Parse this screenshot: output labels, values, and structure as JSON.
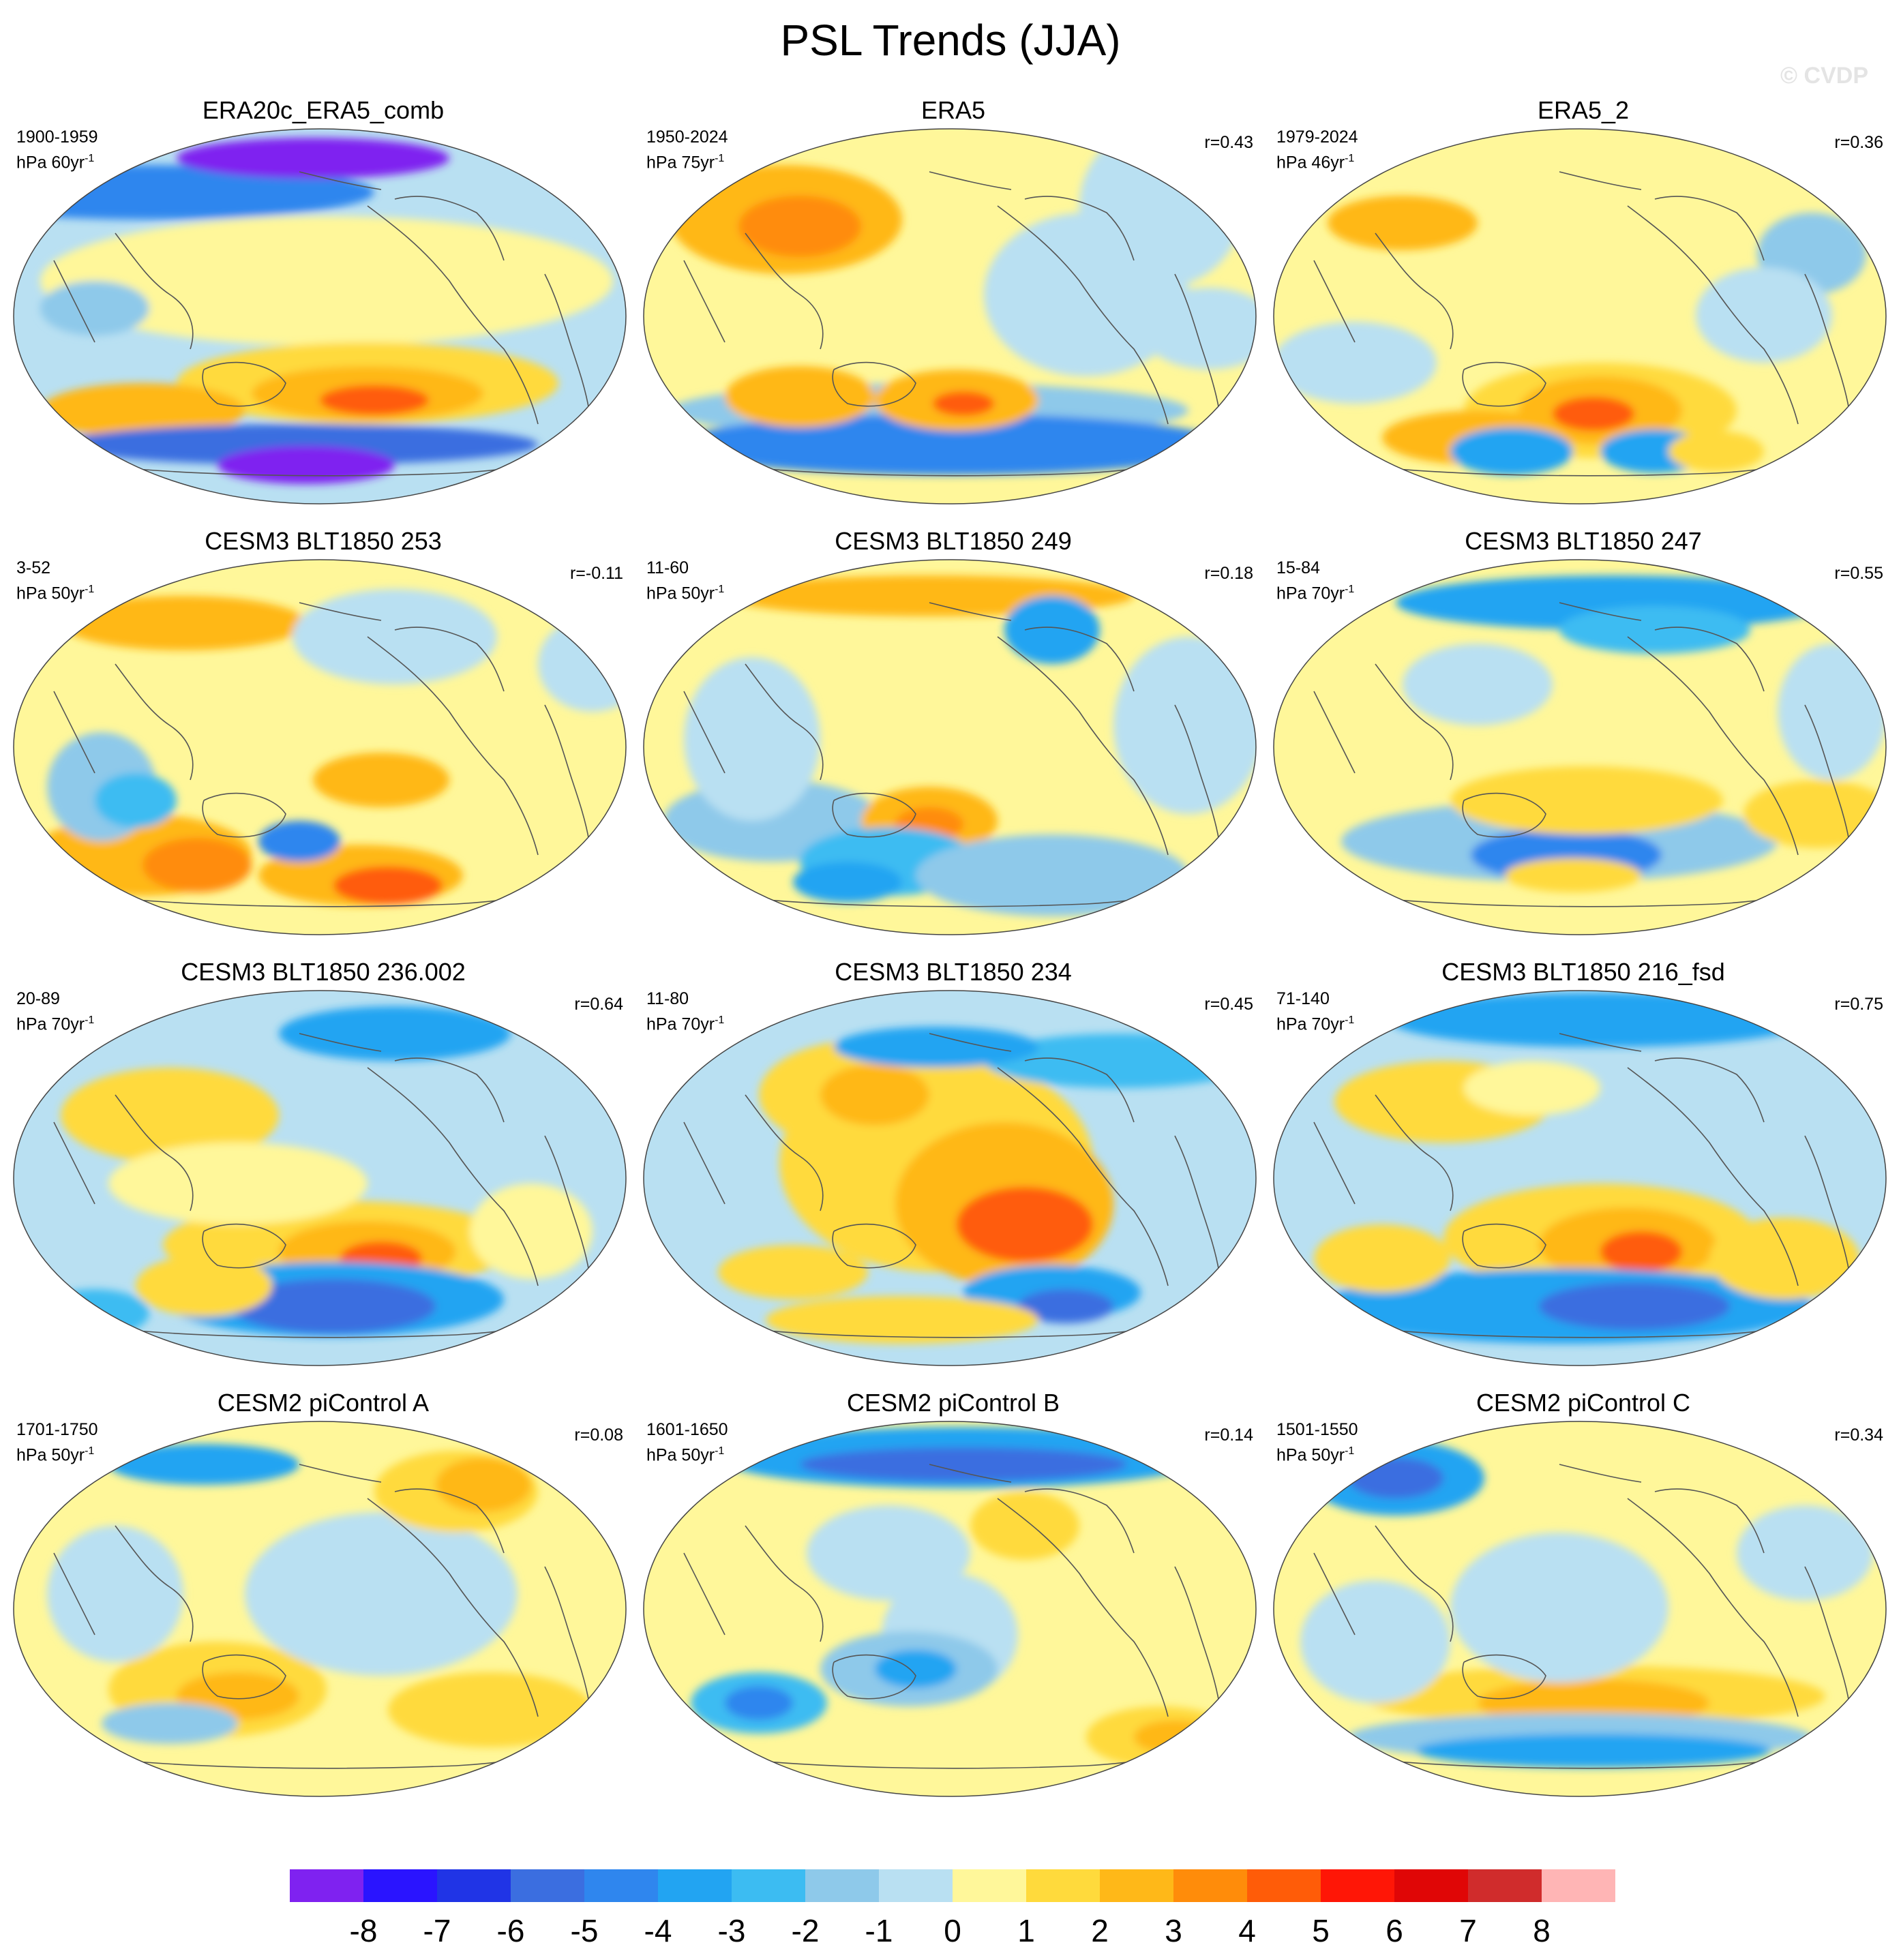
{
  "figure": {
    "title": "PSL Trends (JJA)",
    "watermark": "© CVDP"
  },
  "chart_data": {
    "type": "heatmap",
    "title": "PSL Trends (JJA)",
    "projection": "robinson-like global map",
    "panels": [
      {
        "name": "ERA20c_ERA5_comb",
        "period": "1900-1959",
        "units": "hPa 60yr",
        "units_exp": "-1",
        "r": ""
      },
      {
        "name": "ERA5",
        "period": "1950-2024",
        "units": "hPa 75yr",
        "units_exp": "-1",
        "r": "r=0.43"
      },
      {
        "name": "ERA5_2",
        "period": "1979-2024",
        "units": "hPa 46yr",
        "units_exp": "-1",
        "r": "r=0.36"
      },
      {
        "name": "CESM3 BLT1850 253",
        "period": "3-52",
        "units": "hPa 50yr",
        "units_exp": "-1",
        "r": "r=-0.11"
      },
      {
        "name": "CESM3 BLT1850 249",
        "period": "11-60",
        "units": "hPa 50yr",
        "units_exp": "-1",
        "r": "r=0.18"
      },
      {
        "name": "CESM3 BLT1850 247",
        "period": "15-84",
        "units": "hPa 70yr",
        "units_exp": "-1",
        "r": "r=0.55"
      },
      {
        "name": "CESM3 BLT1850 236.002",
        "period": "20-89",
        "units": "hPa 70yr",
        "units_exp": "-1",
        "r": "r=0.64"
      },
      {
        "name": "CESM3 BLT1850 234",
        "period": "11-80",
        "units": "hPa 70yr",
        "units_exp": "-1",
        "r": "r=0.45"
      },
      {
        "name": "CESM3 BLT1850 216_fsd",
        "period": "71-140",
        "units": "hPa 70yr",
        "units_exp": "-1",
        "r": "r=0.75"
      },
      {
        "name": "CESM2 piControl A",
        "period": "1701-1750",
        "units": "hPa 50yr",
        "units_exp": "-1",
        "r": "r=0.08"
      },
      {
        "name": "CESM2 piControl B",
        "period": "1601-1650",
        "units": "hPa 50yr",
        "units_exp": "-1",
        "r": "r=0.14"
      },
      {
        "name": "CESM2 piControl C",
        "period": "1501-1550",
        "units": "hPa 50yr",
        "units_exp": "-1",
        "r": "r=0.34"
      }
    ],
    "colorbar": {
      "levels": [
        "-8",
        "-7",
        "-6",
        "-5",
        "-4",
        "-3",
        "-2",
        "-1",
        "0",
        "1",
        "2",
        "3",
        "4",
        "5",
        "6",
        "7",
        "8"
      ],
      "colors": [
        "#7f22f0",
        "#2a14ff",
        "#2034e6",
        "#3b6ee0",
        "#2f86ee",
        "#22a4f2",
        "#3cbcf2",
        "#8ec9ea",
        "#b9e0f2",
        "#fff79a",
        "#ffda3c",
        "#ffb818",
        "#ff8c0a",
        "#ff5c08",
        "#ff1606",
        "#e00606",
        "#d02c2c",
        "#ffb5b5"
      ]
    }
  }
}
